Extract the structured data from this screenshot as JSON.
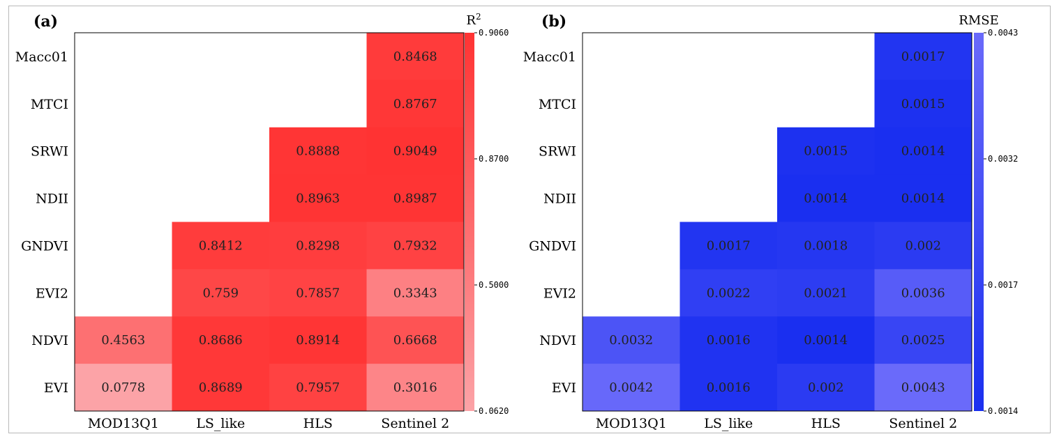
{
  "chart_data": [
    {
      "type": "heatmap",
      "panel_label": "(a)",
      "colorbar_label": "R",
      "colorbar_label_superscript": "2",
      "colorbar_ticks": [
        "0.9060",
        "0.8700",
        "0.5000",
        "0.0620"
      ],
      "color_low": "#fca3a7",
      "color_high": "#ff3333",
      "x_categories": [
        "MOD13Q1",
        "LS_like",
        "HLS",
        "Sentinel 2"
      ],
      "y_categories": [
        "Macc01",
        "MTCI",
        "SRWI",
        "NDII",
        "GNDVI",
        "EVI2",
        "NDVI",
        "EVI"
      ],
      "cells": [
        {
          "row": 0,
          "col": 3,
          "value": 0.8468,
          "label": "0.8468"
        },
        {
          "row": 1,
          "col": 3,
          "value": 0.8767,
          "label": "0.8767"
        },
        {
          "row": 2,
          "col": 2,
          "value": 0.8888,
          "label": "0.8888"
        },
        {
          "row": 2,
          "col": 3,
          "value": 0.9049,
          "label": "0.9049"
        },
        {
          "row": 3,
          "col": 2,
          "value": 0.8963,
          "label": "0.8963"
        },
        {
          "row": 3,
          "col": 3,
          "value": 0.8987,
          "label": "0.8987"
        },
        {
          "row": 4,
          "col": 1,
          "value": 0.8412,
          "label": "0.8412"
        },
        {
          "row": 4,
          "col": 2,
          "value": 0.8298,
          "label": "0.8298"
        },
        {
          "row": 4,
          "col": 3,
          "value": 0.7932,
          "label": "0.7932"
        },
        {
          "row": 5,
          "col": 1,
          "value": 0.759,
          "label": "0.759"
        },
        {
          "row": 5,
          "col": 2,
          "value": 0.7857,
          "label": "0.7857"
        },
        {
          "row": 5,
          "col": 3,
          "value": 0.3343,
          "label": "0.3343"
        },
        {
          "row": 6,
          "col": 0,
          "value": 0.4563,
          "label": "0.4563"
        },
        {
          "row": 6,
          "col": 1,
          "value": 0.8686,
          "label": "0.8686"
        },
        {
          "row": 6,
          "col": 2,
          "value": 0.8914,
          "label": "0.8914"
        },
        {
          "row": 6,
          "col": 3,
          "value": 0.6668,
          "label": "0.6668"
        },
        {
          "row": 7,
          "col": 0,
          "value": 0.0778,
          "label": "0.0778"
        },
        {
          "row": 7,
          "col": 1,
          "value": 0.8689,
          "label": "0.8689"
        },
        {
          "row": 7,
          "col": 2,
          "value": 0.7957,
          "label": "0.7957"
        },
        {
          "row": 7,
          "col": 3,
          "value": 0.3016,
          "label": "0.3016"
        }
      ]
    },
    {
      "type": "heatmap",
      "panel_label": "(b)",
      "colorbar_label": "RMSE",
      "colorbar_label_superscript": "",
      "colorbar_ticks": [
        "0.0043",
        "0.0032",
        "0.0017",
        "0.0014"
      ],
      "color_low": "#1a2ff0",
      "color_high": "#6a6afa",
      "x_categories": [
        "MOD13Q1",
        "LS_like",
        "HLS",
        "Sentinel 2"
      ],
      "y_categories": [
        "Macc01",
        "MTCI",
        "SRWI",
        "NDII",
        "GNDVI",
        "EVI2",
        "NDVI",
        "EVI"
      ],
      "cells": [
        {
          "row": 0,
          "col": 3,
          "value": 0.0017,
          "label": "0.0017"
        },
        {
          "row": 1,
          "col": 3,
          "value": 0.0015,
          "label": "0.0015"
        },
        {
          "row": 2,
          "col": 2,
          "value": 0.0015,
          "label": "0.0015"
        },
        {
          "row": 2,
          "col": 3,
          "value": 0.0014,
          "label": "0.0014"
        },
        {
          "row": 3,
          "col": 2,
          "value": 0.0014,
          "label": "0.0014"
        },
        {
          "row": 3,
          "col": 3,
          "value": 0.0014,
          "label": "0.0014"
        },
        {
          "row": 4,
          "col": 1,
          "value": 0.0017,
          "label": "0.0017"
        },
        {
          "row": 4,
          "col": 2,
          "value": 0.0018,
          "label": "0.0018"
        },
        {
          "row": 4,
          "col": 3,
          "value": 0.002,
          "label": "0.002"
        },
        {
          "row": 5,
          "col": 1,
          "value": 0.0022,
          "label": "0.0022"
        },
        {
          "row": 5,
          "col": 2,
          "value": 0.0021,
          "label": "0.0021"
        },
        {
          "row": 5,
          "col": 3,
          "value": 0.0036,
          "label": "0.0036"
        },
        {
          "row": 6,
          "col": 0,
          "value": 0.0032,
          "label": "0.0032"
        },
        {
          "row": 6,
          "col": 1,
          "value": 0.0016,
          "label": "0.0016"
        },
        {
          "row": 6,
          "col": 2,
          "value": 0.0014,
          "label": "0.0014"
        },
        {
          "row": 6,
          "col": 3,
          "value": 0.0025,
          "label": "0.0025"
        },
        {
          "row": 7,
          "col": 0,
          "value": 0.0042,
          "label": "0.0042"
        },
        {
          "row": 7,
          "col": 1,
          "value": 0.0016,
          "label": "0.0016"
        },
        {
          "row": 7,
          "col": 2,
          "value": 0.002,
          "label": "0.002"
        },
        {
          "row": 7,
          "col": 3,
          "value": 0.0043,
          "label": "0.0043"
        }
      ]
    }
  ]
}
